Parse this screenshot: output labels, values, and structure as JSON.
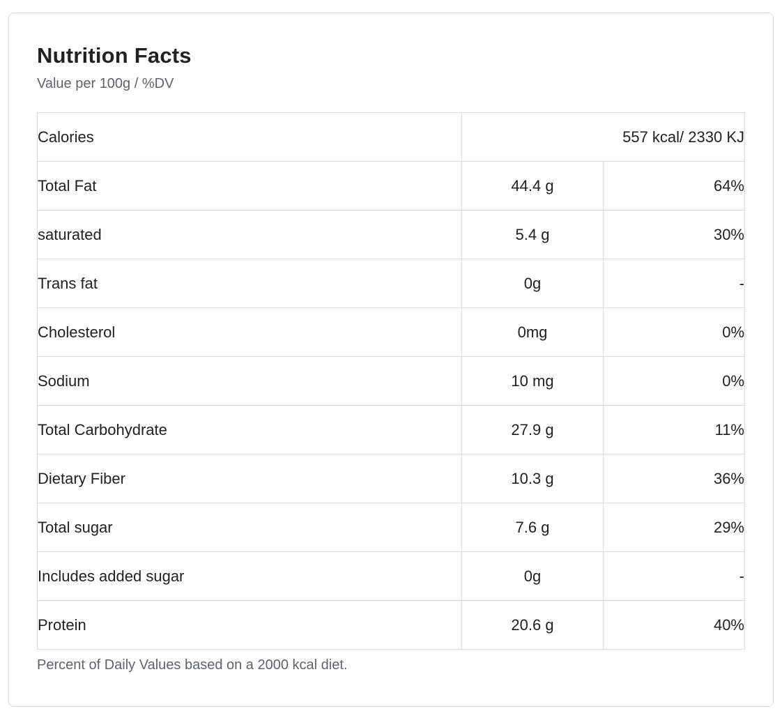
{
  "header": {
    "title": "Nutrition Facts",
    "subtitle": "Value per 100g / %DV"
  },
  "table": {
    "calories_row": {
      "label": "Calories",
      "value": "557 kcal/ 2330 KJ"
    },
    "rows": [
      {
        "label": "Total Fat",
        "value": "44.4 g",
        "dv": "64%"
      },
      {
        "label": "saturated",
        "value": "5.4 g",
        "dv": "30%"
      },
      {
        "label": "Trans fat",
        "value": "0g",
        "dv": "-"
      },
      {
        "label": "Cholesterol",
        "value": "0mg",
        "dv": "0%"
      },
      {
        "label": "Sodium",
        "value": "10 mg",
        "dv": "0%"
      },
      {
        "label": "Total Carbohydrate",
        "value": "27.9 g",
        "dv": "11%"
      },
      {
        "label": "Dietary Fiber",
        "value": "10.3 g",
        "dv": "36%"
      },
      {
        "label": "Total sugar",
        "value": "7.6 g",
        "dv": "29%"
      },
      {
        "label": "Includes added sugar",
        "value": "0g",
        "dv": "-"
      },
      {
        "label": "Protein",
        "value": "20.6 g",
        "dv": "40%"
      }
    ]
  },
  "footer": {
    "note": "Percent of Daily Values based on a 2000 kcal diet."
  },
  "colors": {
    "text": "#202124",
    "muted_text": "#5f6368",
    "border": "#dadada",
    "card_border": "#dcdcdc",
    "background": "#ffffff"
  }
}
